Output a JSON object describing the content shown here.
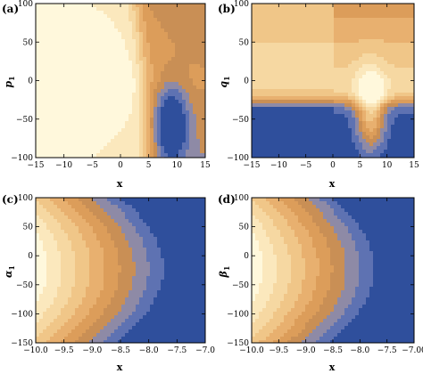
{
  "colors": {
    "levels": [
      "#2f4f9c",
      "#5e72b2",
      "#8e8aa6",
      "#c98f55",
      "#dc9d5a",
      "#e8b06f",
      "#f0c688",
      "#f6d8a2",
      "#fbe8bd",
      "#fff8dc"
    ],
    "frame": "#000000"
  },
  "chart_data": [
    {
      "type": "heatmap",
      "panel_label": "(a)",
      "xlabel": "x",
      "ylabel": "p",
      "ylabel_sub": "1",
      "xlim": [
        -15,
        15
      ],
      "ylim": [
        -100,
        100
      ],
      "x_ticks": [
        -15,
        -10,
        -5,
        0,
        5,
        10,
        15
      ],
      "x_tick_labels": [
        "−15",
        "−10",
        "−5",
        "0",
        "5",
        "10",
        "15"
      ],
      "y_ticks": [
        -100,
        -50,
        0,
        50,
        100
      ],
      "y_tick_labels": [
        "−100",
        "−50",
        "0",
        "50",
        "100"
      ],
      "contour_levels": 10
    },
    {
      "type": "heatmap",
      "panel_label": "(b)",
      "xlabel": "x",
      "ylabel": "q",
      "ylabel_sub": "1",
      "xlim": [
        -15,
        15
      ],
      "ylim": [
        -100,
        100
      ],
      "x_ticks": [
        -15,
        -10,
        -5,
        0,
        5,
        10,
        15
      ],
      "x_tick_labels": [
        "−15",
        "−10",
        "−5",
        "0",
        "5",
        "10",
        "15"
      ],
      "y_ticks": [
        -100,
        -50,
        0,
        50,
        100
      ],
      "y_tick_labels": [
        "−100",
        "−50",
        "0",
        "50",
        "100"
      ],
      "contour_levels": 10
    },
    {
      "type": "heatmap",
      "panel_label": "(c)",
      "xlabel": "x",
      "ylabel": "α",
      "ylabel_sub": "1",
      "xlim": [
        -10,
        -7
      ],
      "ylim": [
        -150,
        100
      ],
      "x_ticks": [
        -10,
        -9.5,
        -9,
        -8.5,
        -8,
        -7.5,
        -7
      ],
      "x_tick_labels": [
        "−10.0",
        "−9.5",
        "−9.0",
        "−8.5",
        "−8.0",
        "−7.5",
        "−7.0"
      ],
      "y_ticks": [
        -150,
        -100,
        -50,
        0,
        50,
        100
      ],
      "y_tick_labels": [
        "−150",
        "−100",
        "−50",
        "0",
        "50",
        "100"
      ],
      "contour_levels": 10
    },
    {
      "type": "heatmap",
      "panel_label": "(d)",
      "xlabel": "x",
      "ylabel": "β",
      "ylabel_sub": "1",
      "xlim": [
        -10,
        -7
      ],
      "ylim": [
        -150,
        100
      ],
      "x_ticks": [
        -10,
        -9.5,
        -9,
        -8.5,
        -8,
        -7.5,
        -7
      ],
      "x_tick_labels": [
        "−10.0",
        "−9.5",
        "−9.0",
        "−8.5",
        "−8.0",
        "−7.5",
        "−7.00"
      ],
      "y_ticks": [
        -150,
        -100,
        -50,
        0,
        50,
        100
      ],
      "y_tick_labels": [
        "−150",
        "−100",
        "−50",
        "0",
        "50",
        "100"
      ],
      "contour_levels": 10
    }
  ]
}
